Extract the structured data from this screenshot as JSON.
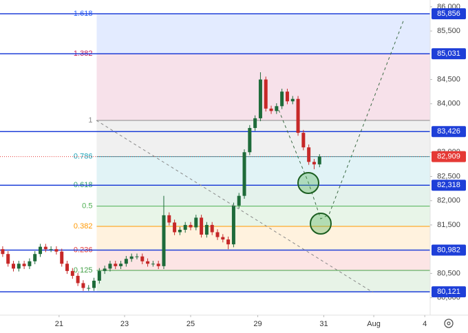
{
  "chart_data": {
    "type": "candlestick",
    "xlim": [
      -0.5,
      79.6
    ],
    "xticks": [
      {
        "value": 10.5,
        "label": "21"
      },
      {
        "value": 22.7,
        "label": "23"
      },
      {
        "value": 35,
        "label": "25"
      },
      {
        "value": 47.5,
        "label": "29"
      },
      {
        "value": 59.8,
        "label": "31"
      },
      {
        "value": 69.1,
        "label": "Aug"
      },
      {
        "value": 78.6,
        "label": "4"
      }
    ],
    "ylim": [
      79640,
      86140
    ],
    "yticks": [
      {
        "value": 86000,
        "label": "86,000"
      },
      {
        "value": 85500,
        "label": "85,500"
      },
      {
        "value": 84500,
        "label": "84,500"
      },
      {
        "value": 84000,
        "label": "84,000"
      },
      {
        "value": 83000,
        "label": "83,000"
      },
      {
        "value": 82500,
        "label": "82,500"
      },
      {
        "value": 82000,
        "label": "82,000"
      },
      {
        "value": 81500,
        "label": "81,500"
      },
      {
        "value": 80500,
        "label": "80,500"
      },
      {
        "value": 80000,
        "label": "80,000"
      }
    ],
    "up_color": "#1e6b3a",
    "down_color": "#c62828",
    "open": [
      81000,
      80900,
      80700,
      80600,
      80700,
      80650,
      80750,
      80900,
      81050,
      81000,
      81000,
      80950,
      80700,
      80550,
      80450,
      80300,
      80200,
      80200,
      80350,
      80550,
      80600,
      80700,
      80650,
      80700,
      80800,
      80850,
      80850,
      80750,
      80700,
      80700,
      80650,
      81700,
      81550,
      81350,
      81400,
      81500,
      81450,
      81650,
      81300,
      81500,
      81350,
      81250,
      81200,
      81100,
      81900,
      82100,
      83000,
      83500,
      83700,
      84500,
      83900,
      83850,
      83950,
      84250,
      84050,
      84100,
      83400,
      83100,
      82800,
      82750
    ],
    "high": [
      81060,
      80960,
      80760,
      80760,
      80760,
      80810,
      80960,
      81110,
      81110,
      81060,
      81060,
      81010,
      80760,
      80610,
      80510,
      80360,
      80260,
      80410,
      80610,
      80660,
      80760,
      80760,
      80760,
      80860,
      80910,
      80910,
      80910,
      80810,
      80760,
      80760,
      82100,
      81760,
      81610,
      81460,
      81560,
      81560,
      81710,
      81710,
      81560,
      81560,
      81410,
      81310,
      81260,
      81960,
      82160,
      83060,
      83560,
      83760,
      84650,
      84560,
      83960,
      84010,
      84310,
      84310,
      84160,
      84160,
      83460,
      83160,
      82860,
      82960
    ],
    "low": [
      80840,
      80640,
      80540,
      80540,
      80590,
      80590,
      80690,
      80840,
      80940,
      80940,
      80890,
      80640,
      80490,
      80390,
      80240,
      80140,
      80140,
      80140,
      80290,
      80490,
      80540,
      80590,
      80590,
      80640,
      80740,
      80790,
      80690,
      80640,
      80640,
      80590,
      80590,
      81490,
      81290,
      81290,
      81340,
      81390,
      81390,
      81240,
      81240,
      81290,
      81190,
      81140,
      81000,
      81040,
      81840,
      82040,
      82940,
      83440,
      83640,
      83840,
      83790,
      83790,
      83890,
      83990,
      83990,
      83340,
      83040,
      82740,
      82650,
      82690
    ],
    "close": [
      80900,
      80700,
      80600,
      80700,
      80650,
      80750,
      80900,
      81050,
      81000,
      81000,
      80950,
      80700,
      80550,
      80450,
      80300,
      80200,
      80200,
      80350,
      80550,
      80600,
      80700,
      80650,
      80700,
      80800,
      80850,
      80850,
      80750,
      80700,
      80700,
      80650,
      81700,
      81550,
      81350,
      81400,
      81500,
      81450,
      81650,
      81300,
      81500,
      81350,
      81250,
      81200,
      81100,
      81900,
      82100,
      83000,
      83500,
      83700,
      84500,
      83900,
      83850,
      83950,
      84250,
      84050,
      84100,
      83400,
      83100,
      82800,
      82750,
      82909
    ],
    "fib_start_x": 17.5,
    "fib_levels": [
      {
        "label": null,
        "value": 80121,
        "color": "#2962ff"
      },
      {
        "label": "0.125",
        "value": 80563,
        "color": "#43a047"
      },
      {
        "label": "0.236",
        "value": 80982,
        "color": "#e53935"
      },
      {
        "label": "0.382",
        "value": 81471,
        "color": "#ff9800"
      },
      {
        "label": "0.5",
        "value": 81888,
        "color": "#4caf50"
      },
      {
        "label": "0.618",
        "value": 82318,
        "color": "#2e9e6e"
      },
      {
        "label": "0.786",
        "value": 82909,
        "color": "#1aa3b8"
      },
      {
        "label": "1",
        "value": 83656,
        "color": "#8a8a8a"
      },
      {
        "label": "1.382",
        "value": 85031,
        "color": "#c2185b"
      },
      {
        "label": "1.618",
        "value": 85856,
        "color": "#2962ff"
      }
    ],
    "horizontal_lines": [
      {
        "value": 85856,
        "label": "85,856"
      },
      {
        "value": 85031,
        "label": "85,031"
      },
      {
        "value": 83426,
        "label": "83,426"
      },
      {
        "value": 82318,
        "label": "82,318"
      },
      {
        "value": 80982,
        "label": "80,982"
      },
      {
        "value": 80121,
        "label": "80,121"
      }
    ],
    "line_color": "#1e3fd8",
    "last_price": {
      "value": 82909,
      "label": "82,909"
    },
    "last_price_color": "#e53935"
  }
}
